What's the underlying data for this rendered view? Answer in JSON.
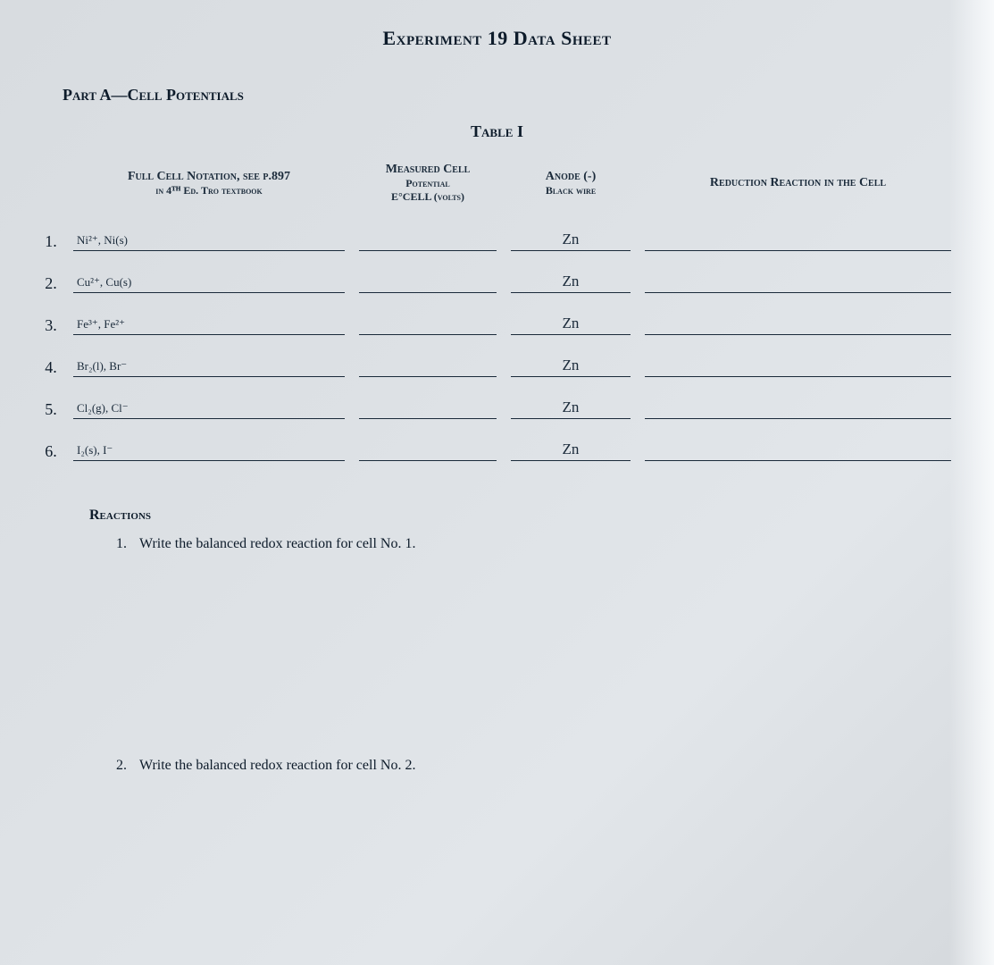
{
  "colors": {
    "text": "#0d1b2a",
    "bg_grad_start": "#d8dce0",
    "bg_grad_end": "#e2e6ea",
    "underline": "#1a2a3a"
  },
  "title": "Experiment 19 Data Sheet",
  "part_label": "Part A—Cell Potentials",
  "table_label": "Table I",
  "headers": {
    "notation_line1": "Full Cell Notation, see p.897",
    "notation_line2": "in 4ᵀᴴ Ed. Tro textbook",
    "potential_line1": "Measured Cell",
    "potential_line2": "Potential",
    "potential_line3": "E°CELL (volts)",
    "anode_line1": "Anode (-)",
    "anode_line2": "Black wire",
    "reduction": "Reduction Reaction in the Cell"
  },
  "rows": [
    {
      "num": "1.",
      "notation": "Ni²⁺, Ni(s)",
      "potential": "",
      "anode": "Zn",
      "reduction": ""
    },
    {
      "num": "2.",
      "notation": "Cu²⁺, Cu(s)",
      "potential": "",
      "anode": "Zn",
      "reduction": ""
    },
    {
      "num": "3.",
      "notation": "Fe³⁺, Fe²⁺",
      "potential": "",
      "anode": "Zn",
      "reduction": ""
    },
    {
      "num": "4.",
      "notation": "Br₂(l), Br⁻",
      "potential": "",
      "anode": "Zn",
      "reduction": ""
    },
    {
      "num": "5.",
      "notation": "Cl₂(g), Cl⁻",
      "potential": "",
      "anode": "Zn",
      "reduction": ""
    },
    {
      "num": "6.",
      "notation": "I₂(s), I⁻",
      "potential": "",
      "anode": "Zn",
      "reduction": ""
    }
  ],
  "reactions_heading": "Reactions",
  "questions": [
    {
      "num": "1.",
      "text": "Write the balanced redox reaction for cell No. 1."
    },
    {
      "num": "2.",
      "text": "Write the balanced redox reaction for cell No. 2."
    }
  ]
}
